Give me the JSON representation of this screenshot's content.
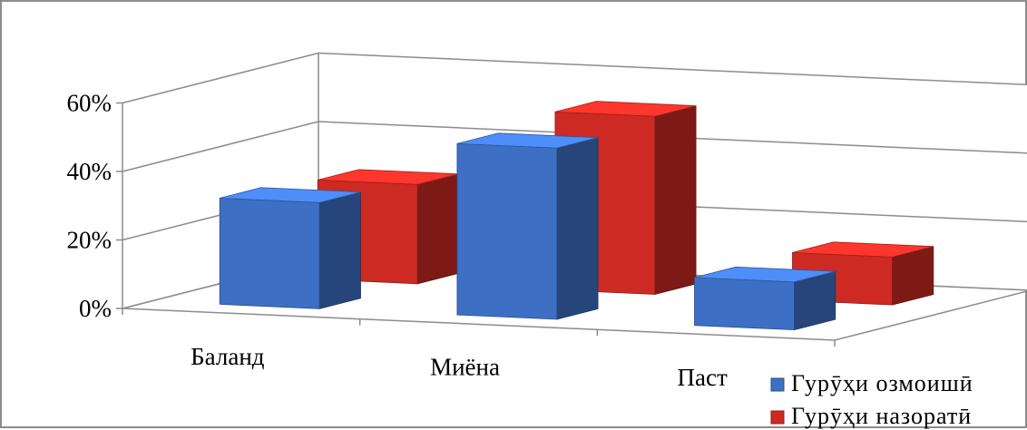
{
  "chart_data": {
    "type": "bar",
    "categories": [
      "Баланд",
      "Миёна",
      "Паст"
    ],
    "series": [
      {
        "name": "Гурӯҳи озмоишӣ",
        "values": [
          31,
          50,
          14
        ],
        "color": "#3d6fc4"
      },
      {
        "name": "Гурӯҳи назоратӣ",
        "values": [
          29,
          52,
          14
        ],
        "color": "#cc2a22"
      }
    ],
    "ylim": [
      0,
      60
    ],
    "yticks": [
      "0%",
      "20%",
      "40%",
      "60%"
    ],
    "grid": true,
    "legend": "bottom-right",
    "style": "3d-clustered"
  }
}
